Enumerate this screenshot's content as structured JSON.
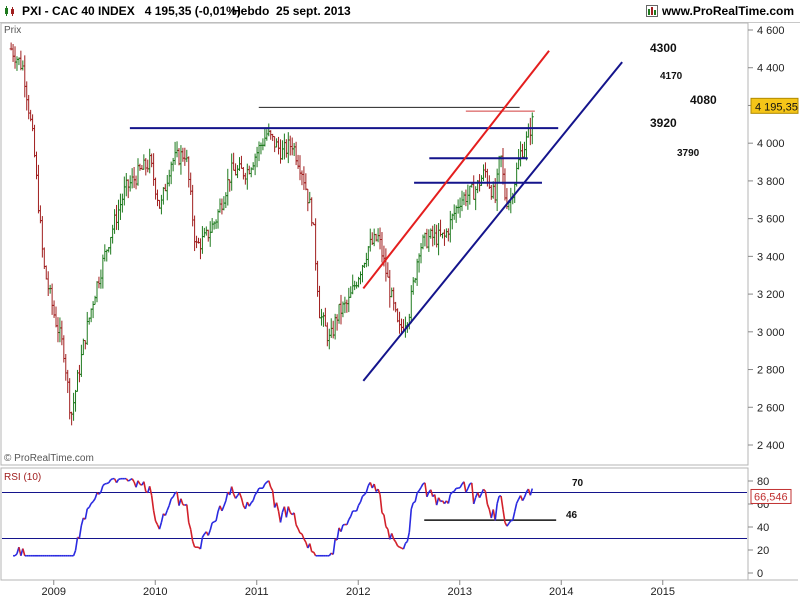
{
  "header": {
    "title": "PXI - CAC 40 INDEX",
    "quote": "4 195,35 (-0,01%)",
    "period": "Hebdo",
    "date": "25 sept. 2013",
    "brand": "www.ProRealTime.com"
  },
  "price_panel_label": "Prix",
  "rsi_panel_label": "RSI (10)",
  "copyright": "© ProRealTime.com",
  "colors": {
    "up_bar": "#1e7a1e",
    "down_bar": "#a01e1e",
    "support_line": "#14148c",
    "red_line": "#e41e1e",
    "resistance_4170": "#d23c3c",
    "rsi_line_up": "#2a2ae0",
    "rsi_line_down": "#d2202a",
    "last_price_bg": "#f5c518",
    "last_rsi_bg": "#ffffff"
  },
  "chart_data": {
    "type": "ohlc",
    "price": {
      "ylabel": "Prix",
      "ylim": [
        2350,
        4650
      ],
      "yticks": [
        "2 400",
        "2 600",
        "2 800",
        "3 000",
        "3 200",
        "3 400",
        "3 600",
        "3 800",
        "4 000",
        "4 200",
        "4 400",
        "4 600"
      ],
      "last_price_label": "4 195,35",
      "anchors": [
        [
          2008.58,
          4500
        ],
        [
          2008.7,
          4400
        ],
        [
          2008.8,
          4000
        ],
        [
          2008.9,
          3350
        ],
        [
          2009.0,
          3100
        ],
        [
          2009.1,
          2900
        ],
        [
          2009.17,
          2550
        ],
        [
          2009.3,
          2950
        ],
        [
          2009.4,
          3200
        ],
        [
          2009.55,
          3500
        ],
        [
          2009.7,
          3750
        ],
        [
          2009.85,
          3850
        ],
        [
          2009.95,
          3900
        ],
        [
          2010.05,
          3650
        ],
        [
          2010.15,
          3900
        ],
        [
          2010.3,
          3950
        ],
        [
          2010.4,
          3450
        ],
        [
          2010.5,
          3500
        ],
        [
          2010.6,
          3600
        ],
        [
          2010.75,
          3850
        ],
        [
          2010.9,
          3850
        ],
        [
          2011.0,
          3950
        ],
        [
          2011.1,
          4050
        ],
        [
          2011.25,
          3950
        ],
        [
          2011.35,
          4000
        ],
        [
          2011.45,
          3850
        ],
        [
          2011.55,
          3600
        ],
        [
          2011.62,
          3100
        ],
        [
          2011.72,
          2950
        ],
        [
          2011.8,
          3100
        ],
        [
          2011.9,
          3150
        ],
        [
          2012.0,
          3300
        ],
        [
          2012.1,
          3450
        ],
        [
          2012.2,
          3500
        ],
        [
          2012.3,
          3250
        ],
        [
          2012.4,
          3000
        ],
        [
          2012.5,
          3100
        ],
        [
          2012.6,
          3450
        ],
        [
          2012.7,
          3500
        ],
        [
          2012.85,
          3500
        ],
        [
          2013.0,
          3700
        ],
        [
          2013.15,
          3750
        ],
        [
          2013.25,
          3850
        ],
        [
          2013.35,
          3700
        ],
        [
          2013.4,
          3950
        ],
        [
          2013.45,
          3700
        ],
        [
          2013.5,
          3700
        ],
        [
          2013.6,
          3950
        ],
        [
          2013.65,
          4000
        ],
        [
          2013.72,
          4120
        ],
        [
          2013.73,
          4195
        ]
      ],
      "horizontal_levels": [
        {
          "label": "4300",
          "value": 4300
        },
        {
          "label": "4170",
          "value": 4170,
          "x_from": 2013.06,
          "x_to": 2013.74
        },
        {
          "label": "4080",
          "value": 4080,
          "x_from": 2009.75,
          "x_to": 2013.97
        },
        {
          "label": "3920",
          "value": 3920,
          "x_from": 2012.7,
          "x_to": 2013.67
        },
        {
          "label": "3790",
          "value": 3790,
          "x_from": 2012.55,
          "x_to": 2013.81
        },
        {
          "label": "",
          "value": 4190,
          "x_from": 2011.02,
          "x_to": 2013.59
        }
      ],
      "trend_lines": [
        {
          "color": "red",
          "from": [
            2012.05,
            3230
          ],
          "to": [
            2013.88,
            4490
          ]
        },
        {
          "color": "blue",
          "from": [
            2012.05,
            2740
          ],
          "to": [
            2014.6,
            4430
          ]
        }
      ]
    },
    "rsi": {
      "ylabel": "RSI (10)",
      "ylim": [
        -5,
        90
      ],
      "yticks": [
        "0",
        "20",
        "40",
        "60",
        "80"
      ],
      "last_value_label": "66,546",
      "levels": [
        {
          "label": "70",
          "value": 70
        },
        {
          "label": "",
          "value": 30
        }
      ],
      "support_label": "46",
      "support": {
        "value": 46,
        "x_from": 2012.65,
        "x_to": 2013.95
      }
    },
    "xaxis": {
      "ticks": [
        "2009",
        "2010",
        "2011",
        "2012",
        "2013",
        "2014",
        "2015"
      ]
    }
  }
}
